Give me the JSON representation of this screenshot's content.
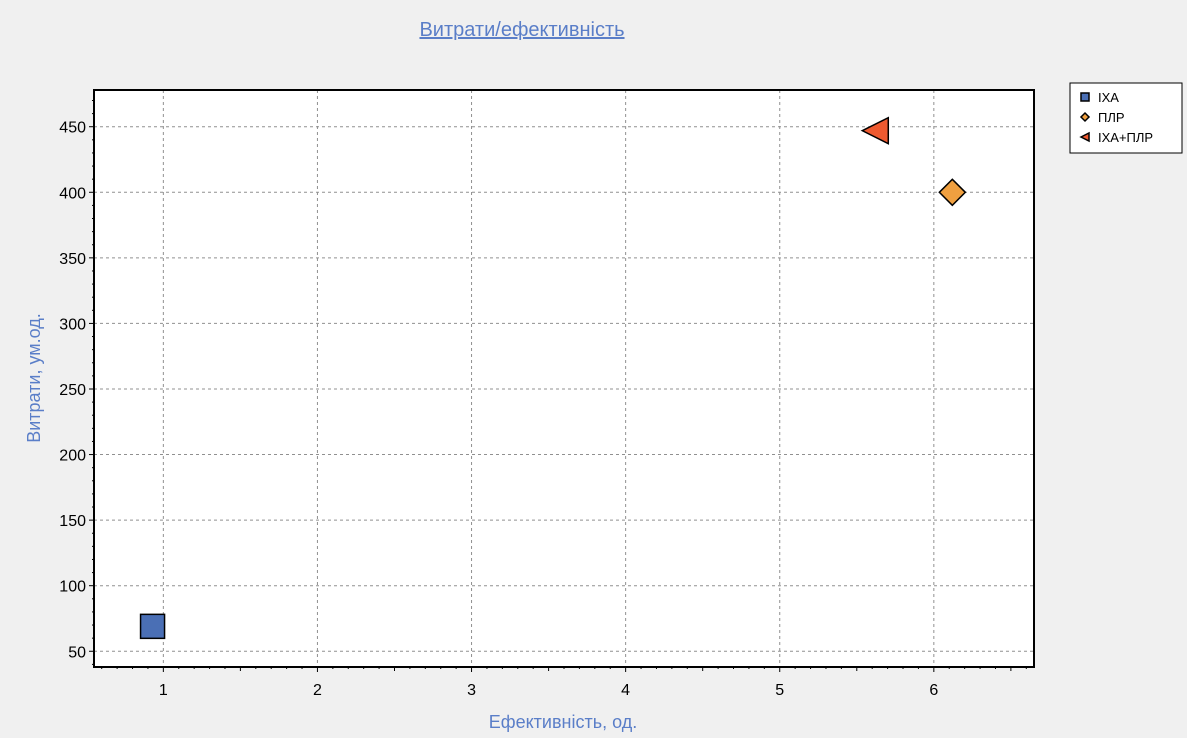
{
  "chart_data": {
    "type": "scatter",
    "title": "Витрати/ефективність",
    "xlabel": "Ефективність, од.",
    "ylabel": "Витрати, ум.од.",
    "xlim": [
      0.55,
      6.65
    ],
    "ylim": [
      38,
      478
    ],
    "x_ticks": [
      1,
      2,
      3,
      4,
      5,
      6
    ],
    "y_ticks": [
      50,
      100,
      150,
      200,
      250,
      300,
      350,
      400,
      450
    ],
    "grid": true,
    "legend_position": "top-right",
    "series": [
      {
        "name": "ІХА",
        "marker": "square",
        "color": "#4a6fb5",
        "points": [
          {
            "x": 0.93,
            "y": 69
          }
        ]
      },
      {
        "name": "ПЛР",
        "marker": "diamond",
        "color": "#f0a040",
        "points": [
          {
            "x": 6.12,
            "y": 400
          }
        ]
      },
      {
        "name": "ІХА+ПЛР",
        "marker": "triangle-left",
        "color": "#ee5a30",
        "points": [
          {
            "x": 5.62,
            "y": 447
          }
        ]
      }
    ]
  },
  "colors": {
    "background": "#f0f0f0",
    "plot_bg": "#ffffff",
    "label": "#5a7ec8",
    "grid": "#909090"
  }
}
